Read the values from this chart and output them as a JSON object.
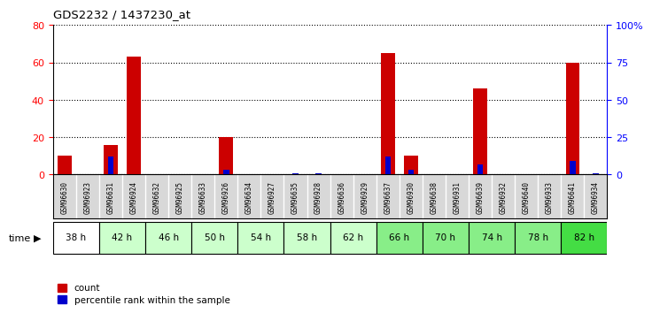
{
  "title": "GDS2232 / 1437230_at",
  "samples": [
    "GSM96630",
    "GSM96923",
    "GSM96631",
    "GSM96924",
    "GSM96632",
    "GSM96925",
    "GSM96633",
    "GSM96926",
    "GSM96634",
    "GSM96927",
    "GSM96635",
    "GSM96928",
    "GSM96636",
    "GSM96929",
    "GSM96637",
    "GSM96930",
    "GSM96638",
    "GSM96931",
    "GSM96639",
    "GSM96932",
    "GSM96640",
    "GSM96933",
    "GSM96641",
    "GSM96934"
  ],
  "count_values": [
    10,
    0,
    16,
    63,
    0,
    0,
    0,
    20,
    0,
    0,
    0,
    0,
    0,
    0,
    65,
    10,
    0,
    0,
    46,
    0,
    0,
    0,
    60,
    0
  ],
  "percentile_values": [
    0,
    0,
    12,
    0,
    0,
    0,
    0,
    3,
    0,
    0,
    1,
    1,
    0,
    0,
    12,
    3,
    0,
    0,
    7,
    0,
    0,
    0,
    9,
    1
  ],
  "time_groups": [
    {
      "label": "38 h",
      "indices": [
        0,
        1
      ],
      "color": "#ffffff"
    },
    {
      "label": "42 h",
      "indices": [
        2,
        3
      ],
      "color": "#ccffcc"
    },
    {
      "label": "46 h",
      "indices": [
        4,
        5
      ],
      "color": "#ccffcc"
    },
    {
      "label": "50 h",
      "indices": [
        6,
        7
      ],
      "color": "#ccffcc"
    },
    {
      "label": "54 h",
      "indices": [
        8,
        9
      ],
      "color": "#ccffcc"
    },
    {
      "label": "58 h",
      "indices": [
        10,
        11
      ],
      "color": "#ccffcc"
    },
    {
      "label": "62 h",
      "indices": [
        12,
        13
      ],
      "color": "#ccffcc"
    },
    {
      "label": "66 h",
      "indices": [
        14,
        15
      ],
      "color": "#88ee88"
    },
    {
      "label": "70 h",
      "indices": [
        16,
        17
      ],
      "color": "#88ee88"
    },
    {
      "label": "74 h",
      "indices": [
        18,
        19
      ],
      "color": "#88ee88"
    },
    {
      "label": "78 h",
      "indices": [
        20,
        21
      ],
      "color": "#88ee88"
    },
    {
      "label": "82 h",
      "indices": [
        22,
        23
      ],
      "color": "#44dd44"
    }
  ],
  "ylim_left": [
    0,
    80
  ],
  "ylim_right": [
    0,
    100
  ],
  "yticks_left": [
    0,
    20,
    40,
    60,
    80
  ],
  "yticks_right": [
    0,
    25,
    50,
    75,
    100
  ],
  "ytick_labels_right": [
    "0",
    "25",
    "50",
    "75",
    "100%"
  ],
  "bar_color_count": "#cc0000",
  "bar_color_percentile": "#0000cc",
  "bg_color": "#ffffff",
  "sample_bg_color": "#d8d8d8",
  "plot_bg_color": "#ffffff"
}
